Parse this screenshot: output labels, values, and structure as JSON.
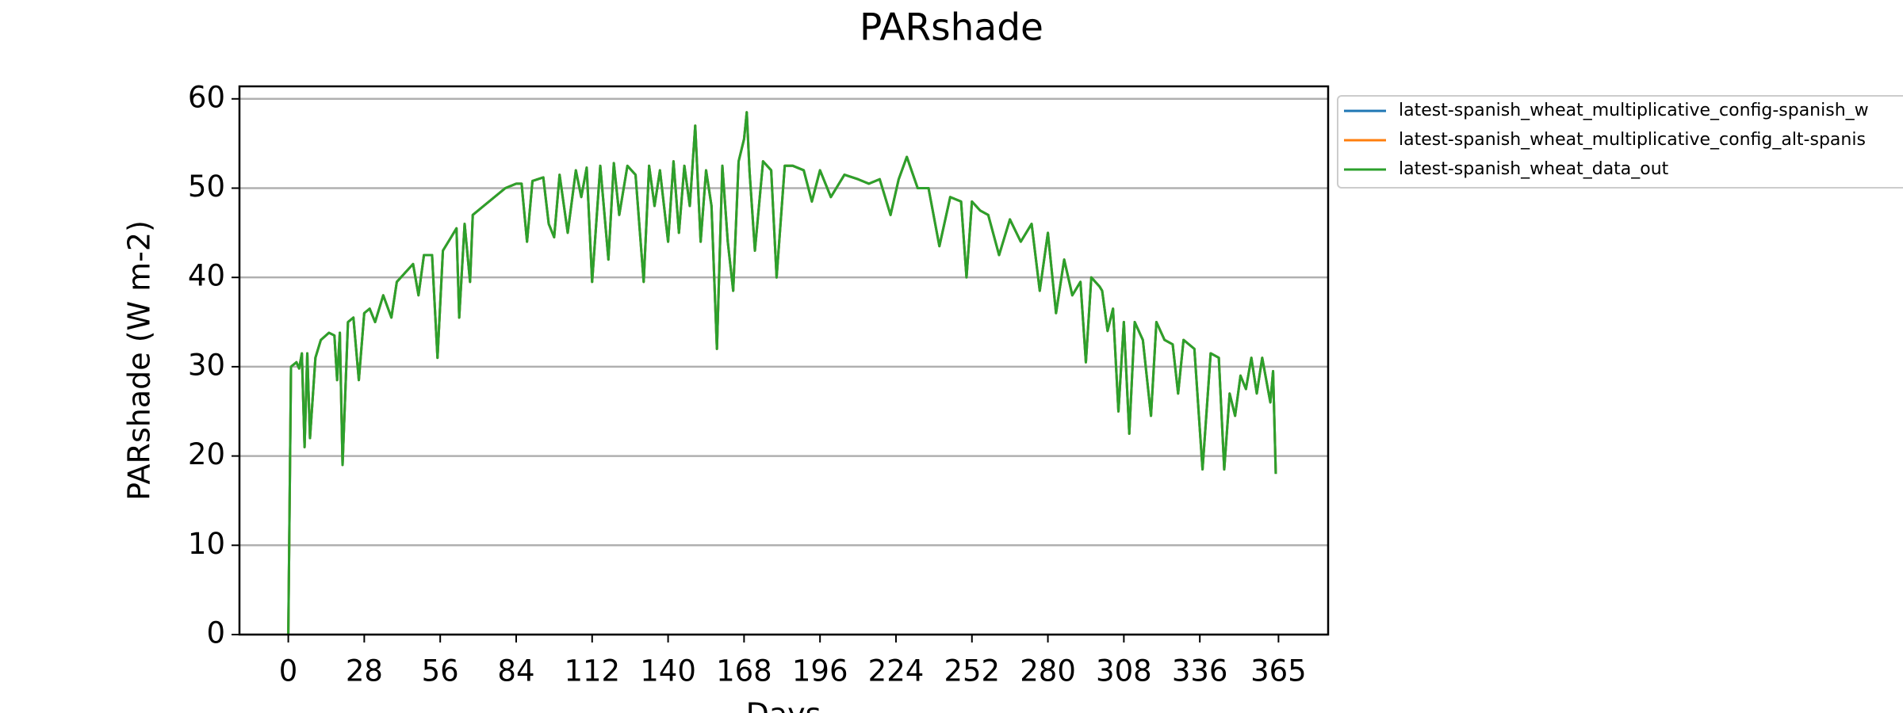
{
  "chart_data": {
    "type": "line",
    "title": "PARshade",
    "x_label": "Days",
    "y_label": "PARshade (W m-2)",
    "x": [
      0,
      1,
      3,
      4,
      5,
      6,
      7,
      8,
      10,
      12,
      15,
      17,
      18,
      19,
      20,
      22,
      24,
      26,
      28,
      30,
      32,
      35,
      38,
      40,
      43,
      46,
      48,
      50,
      53,
      55,
      57,
      60,
      62,
      63,
      65,
      67,
      68,
      72,
      76,
      80,
      84,
      86,
      88,
      90,
      94,
      96,
      98,
      100,
      103,
      106,
      108,
      110,
      112,
      115,
      118,
      120,
      122,
      125,
      128,
      131,
      133,
      135,
      137,
      140,
      142,
      144,
      146,
      148,
      150,
      152,
      154,
      156,
      158,
      160,
      162,
      164,
      166,
      168,
      169,
      170,
      172,
      175,
      178,
      180,
      183,
      186,
      190,
      193,
      196,
      200,
      205,
      210,
      214,
      218,
      222,
      225,
      228,
      232,
      236,
      240,
      244,
      248,
      250,
      252,
      255,
      258,
      262,
      266,
      270,
      274,
      277,
      280,
      283,
      286,
      289,
      292,
      294,
      296,
      299,
      300,
      302,
      304,
      306,
      308,
      310,
      312,
      315,
      318,
      320,
      323,
      326,
      328,
      330,
      334,
      337,
      340,
      343,
      345,
      347,
      349,
      351,
      353,
      355,
      357,
      359,
      362,
      363,
      364
    ],
    "series": [
      {
        "name": "latest-spanish_wheat_multiplicative_config-spanish_w",
        "color": "#1f77b4",
        "values": [
          0,
          30,
          30.5,
          29.8,
          31.5,
          21,
          31.5,
          22,
          31,
          33,
          33.8,
          33.5,
          28.5,
          33.8,
          19,
          35,
          35.5,
          28.5,
          36,
          36.5,
          35,
          38,
          35.5,
          39.5,
          40.5,
          41.5,
          38,
          42.5,
          42.5,
          31,
          43,
          44.5,
          45.5,
          35.5,
          46,
          39.5,
          47,
          48,
          49,
          50,
          50.5,
          50.5,
          44,
          50.8,
          51.2,
          46,
          44.5,
          51.5,
          45,
          52,
          49,
          52.3,
          39.5,
          52.5,
          42,
          52.8,
          47,
          52.5,
          51.5,
          39.5,
          52.5,
          48,
          52,
          44,
          53,
          45,
          52.5,
          48,
          57,
          44,
          52,
          48,
          32,
          52.5,
          44,
          38.5,
          53,
          55.5,
          58.5,
          52,
          43,
          53,
          52,
          40,
          52.5,
          52.5,
          52,
          48.5,
          52,
          49,
          51.5,
          51,
          50.5,
          51,
          47,
          51,
          53.5,
          50,
          50,
          43.5,
          49,
          48.5,
          40,
          48.5,
          47.5,
          47,
          42.5,
          46.5,
          44,
          46,
          38.5,
          45,
          36,
          42,
          38,
          39.5,
          30.5,
          40,
          39,
          38.5,
          34,
          36.5,
          25,
          35,
          22.5,
          35,
          33,
          24.5,
          35,
          33,
          32.5,
          27,
          33,
          32,
          18.5,
          31.5,
          31,
          18.5,
          27,
          24.5,
          29,
          27.5,
          31,
          27,
          31,
          26,
          29.5,
          18
        ]
      },
      {
        "name": "latest-spanish_wheat_multiplicative_config_alt-spanis",
        "color": "#ff7f0e",
        "values": [
          0,
          30,
          30.5,
          29.8,
          31.5,
          21,
          31.5,
          22,
          31,
          33,
          33.8,
          33.5,
          28.5,
          33.8,
          19,
          35,
          35.5,
          28.5,
          36,
          36.5,
          35,
          38,
          35.5,
          39.5,
          40.5,
          41.5,
          38,
          42.5,
          42.5,
          31,
          43,
          44.5,
          45.5,
          35.5,
          46,
          39.5,
          47,
          48,
          49,
          50,
          50.5,
          50.5,
          44,
          50.8,
          51.2,
          46,
          44.5,
          51.5,
          45,
          52,
          49,
          52.3,
          39.5,
          52.5,
          42,
          52.8,
          47,
          52.5,
          51.5,
          39.5,
          52.5,
          48,
          52,
          44,
          53,
          45,
          52.5,
          48,
          57,
          44,
          52,
          48,
          32,
          52.5,
          44,
          38.5,
          53,
          55.5,
          58.5,
          52,
          43,
          53,
          52,
          40,
          52.5,
          52.5,
          52,
          48.5,
          52,
          49,
          51.5,
          51,
          50.5,
          51,
          47,
          51,
          53.5,
          50,
          50,
          43.5,
          49,
          48.5,
          40,
          48.5,
          47.5,
          47,
          42.5,
          46.5,
          44,
          46,
          38.5,
          45,
          36,
          42,
          38,
          39.5,
          30.5,
          40,
          39,
          38.5,
          34,
          36.5,
          25,
          35,
          22.5,
          35,
          33,
          24.5,
          35,
          33,
          32.5,
          27,
          33,
          32,
          18.5,
          31.5,
          31,
          18.5,
          27,
          24.5,
          29,
          27.5,
          31,
          27,
          31,
          26,
          29.5,
          18
        ]
      },
      {
        "name": "latest-spanish_wheat_data_out",
        "color": "#2ca02c",
        "values": [
          0,
          30,
          30.5,
          29.8,
          31.5,
          21,
          31.5,
          22,
          31,
          33,
          33.8,
          33.5,
          28.5,
          33.8,
          19,
          35,
          35.5,
          28.5,
          36,
          36.5,
          35,
          38,
          35.5,
          39.5,
          40.5,
          41.5,
          38,
          42.5,
          42.5,
          31,
          43,
          44.5,
          45.5,
          35.5,
          46,
          39.5,
          47,
          48,
          49,
          50,
          50.5,
          50.5,
          44,
          50.8,
          51.2,
          46,
          44.5,
          51.5,
          45,
          52,
          49,
          52.3,
          39.5,
          52.5,
          42,
          52.8,
          47,
          52.5,
          51.5,
          39.5,
          52.5,
          48,
          52,
          44,
          53,
          45,
          52.5,
          48,
          57,
          44,
          52,
          48,
          32,
          52.5,
          44,
          38.5,
          53,
          55.5,
          58.5,
          52,
          43,
          53,
          52,
          40,
          52.5,
          52.5,
          52,
          48.5,
          52,
          49,
          51.5,
          51,
          50.5,
          51,
          47,
          51,
          53.5,
          50,
          50,
          43.5,
          49,
          48.5,
          40,
          48.5,
          47.5,
          47,
          42.5,
          46.5,
          44,
          46,
          38.5,
          45,
          36,
          42,
          38,
          39.5,
          30.5,
          40,
          39,
          38.5,
          34,
          36.5,
          25,
          35,
          22.5,
          35,
          33,
          24.5,
          35,
          33,
          32.5,
          27,
          33,
          32,
          18.5,
          31.5,
          31,
          18.5,
          27,
          24.5,
          29,
          27.5,
          31,
          27,
          31,
          26,
          29.5,
          18
        ]
      }
    ],
    "xlim": [
      -18,
      383.3
    ],
    "ylim": [
      0,
      61.4
    ],
    "xticks": [
      0,
      28,
      56,
      84,
      112,
      140,
      168,
      196,
      224,
      252,
      280,
      308,
      336,
      365
    ],
    "yticks": [
      0,
      10,
      20,
      30,
      40,
      50,
      60
    ],
    "grid": "y",
    "legend": "outside right"
  }
}
